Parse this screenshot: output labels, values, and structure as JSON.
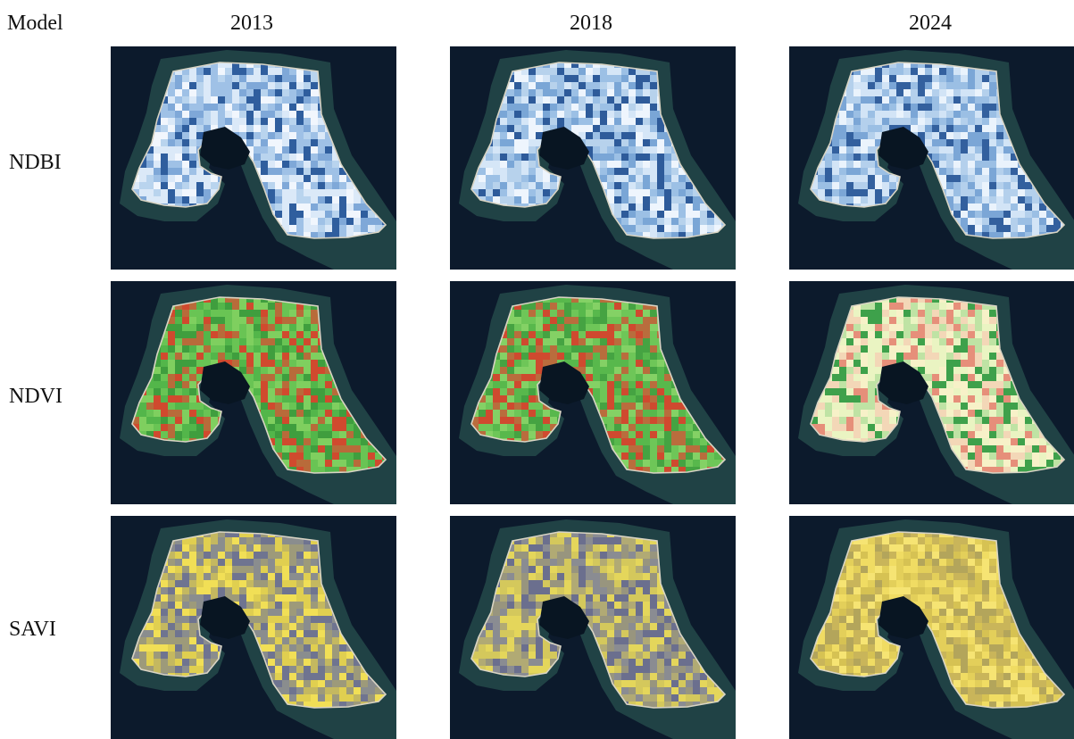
{
  "figure": {
    "corner_label": "Model",
    "years": [
      "2013",
      "2018",
      "2024"
    ],
    "models": [
      {
        "label": "NDBI",
        "ramp": "blues"
      },
      {
        "label": "NDVI",
        "ramp": "red-yellow-green"
      },
      {
        "label": "SAVI",
        "ramp": "gray-yellow"
      }
    ]
  },
  "style": {
    "background_sea": "#0c1a2c",
    "reef_color": "#244a4a",
    "lagoon_color": "#081522",
    "panel_palettes": {
      "NDBI-2013": [
        "#b9d4ee",
        "#dbe9f8",
        "#7fa8d8",
        "#f1f6fd",
        "#9fc1e6",
        "#2f5e9e"
      ],
      "NDBI-2018": [
        "#b7d2ec",
        "#d5e6f7",
        "#7aa6d6",
        "#eef5fd",
        "#9cc0e5",
        "#2e5b9a"
      ],
      "NDBI-2024": [
        "#b4d0ec",
        "#d2e4f6",
        "#7ba6d6",
        "#eaf3fc",
        "#9bbfe4",
        "#33609e"
      ],
      "NDVI-2013": [
        "#53b64a",
        "#69c454",
        "#3f9e3e",
        "#7fcf5f",
        "#b86b3a",
        "#d04a2e"
      ],
      "NDVI-2018": [
        "#58b84c",
        "#6ec658",
        "#45a342",
        "#84d165",
        "#b96d3d",
        "#cf4a2f"
      ],
      "NDVI-2024": [
        "#f7f1c8",
        "#eaf4c2",
        "#bfe3a4",
        "#f3d7b7",
        "#e68f7a",
        "#3ea14b"
      ],
      "SAVI-2013": [
        "#9d9a7a",
        "#c4b860",
        "#e0cf50",
        "#8a8d8e",
        "#6f7490",
        "#f1df56"
      ],
      "SAVI-2018": [
        "#98957e",
        "#b1aa74",
        "#d4c85c",
        "#8a8c92",
        "#6b6f8e",
        "#e4d65b"
      ],
      "SAVI-2024": [
        "#e3cf5a",
        "#f0dc63",
        "#d6c253",
        "#c9b55a",
        "#b3a55b",
        "#f6e473"
      ]
    }
  }
}
